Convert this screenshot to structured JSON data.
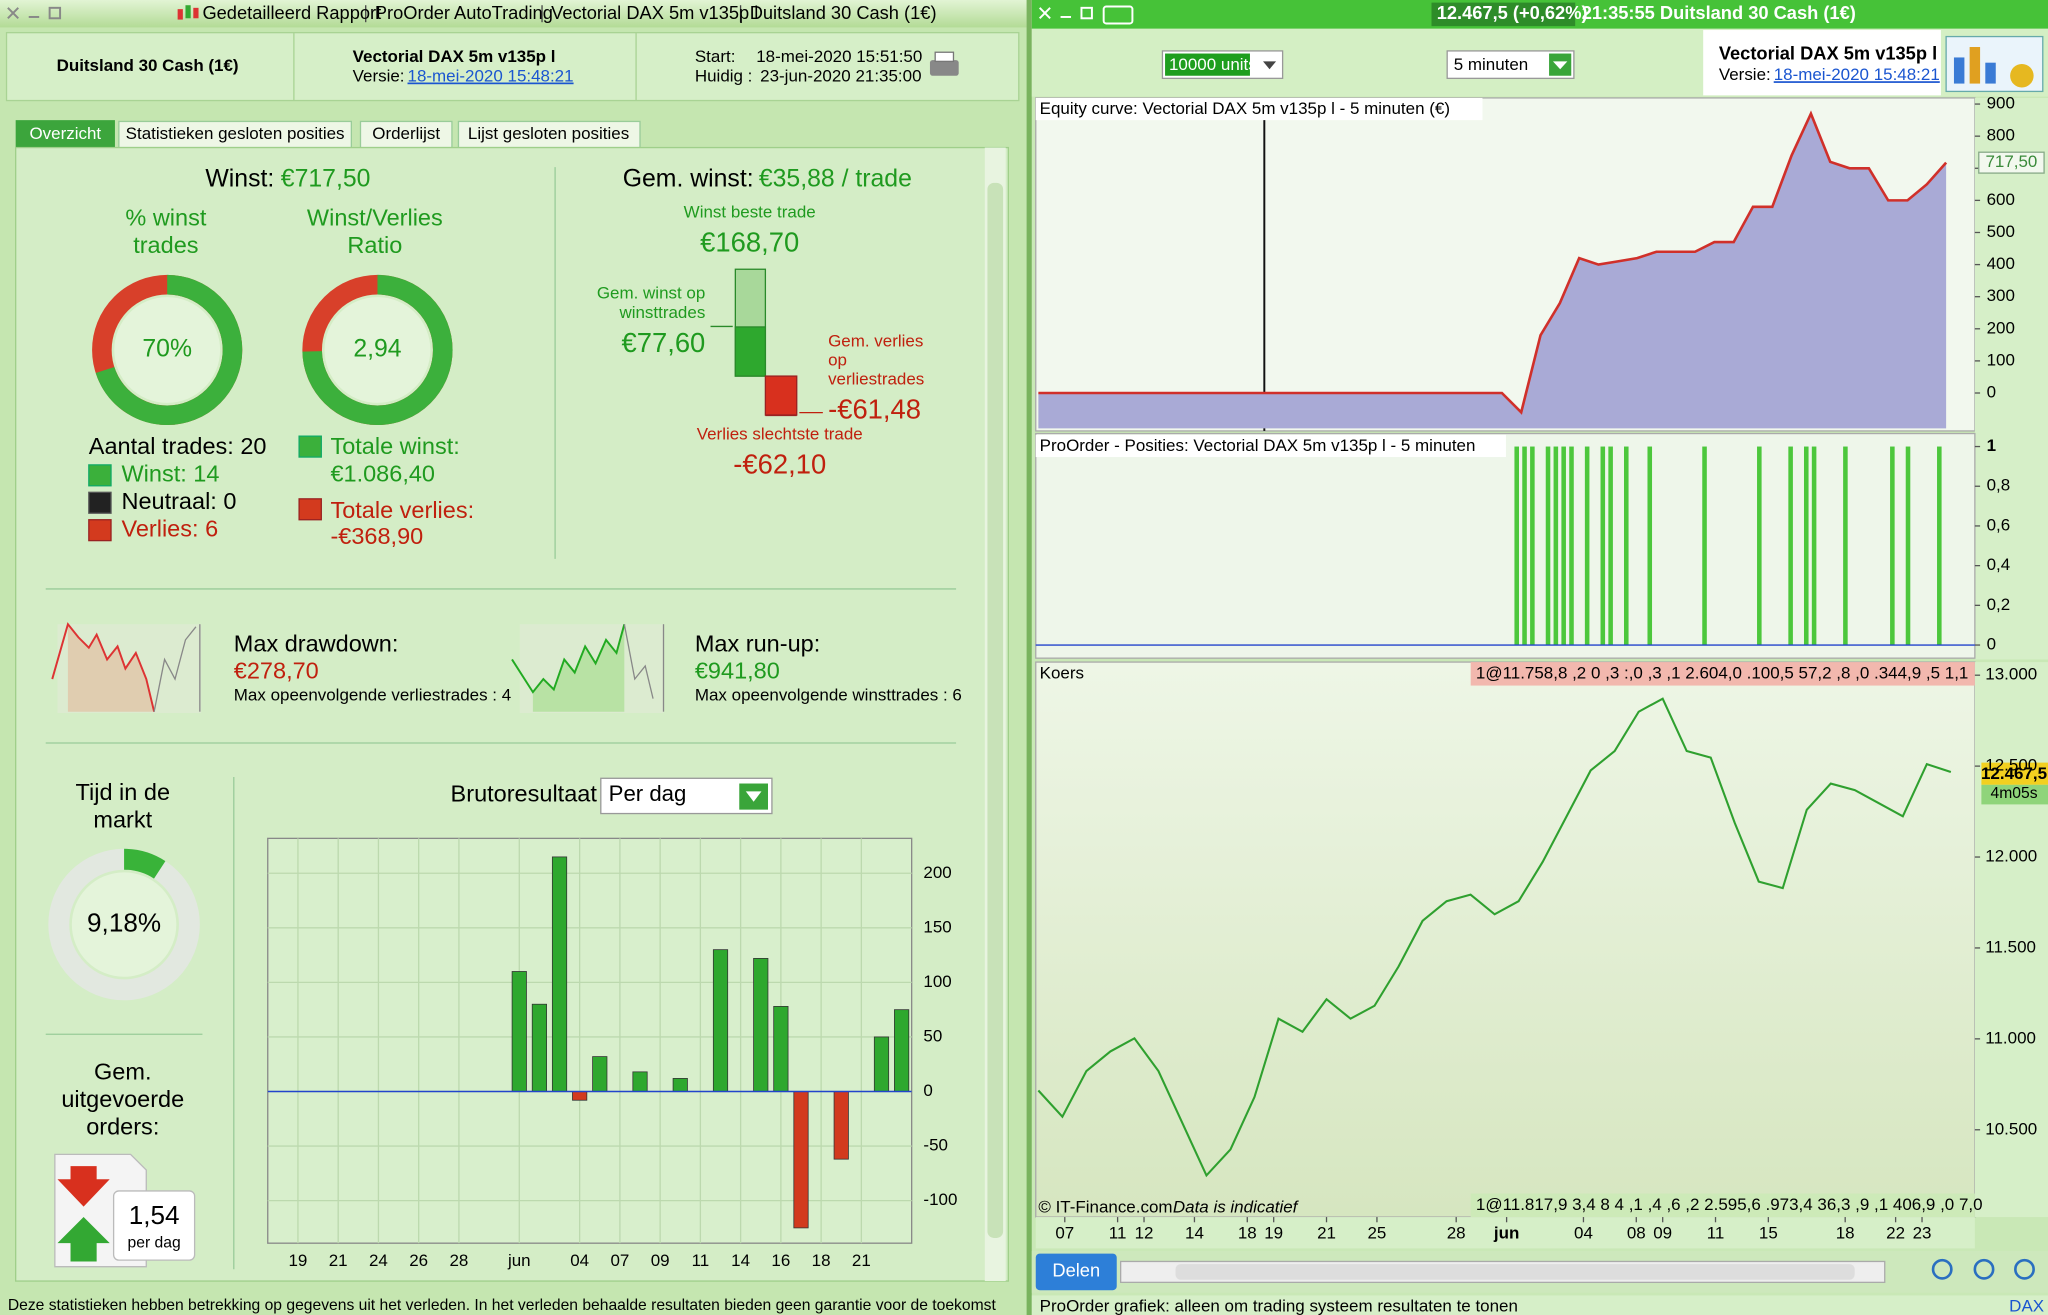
{
  "left": {
    "titlebar": [
      "Gedetailleerd Rapport",
      "ProOrder AutoTrading",
      "Vectorial DAX 5m v135p l",
      "Duitsland 30 Cash (1€)"
    ],
    "header": {
      "instrument": "Duitsland 30 Cash (1€)",
      "system": "Vectorial DAX 5m v135p l",
      "version_label": "Versie:",
      "version": "18-mei-2020 15:48:21",
      "start_label": "Start:",
      "start": "18-mei-2020 15:51:50",
      "now_label": "Huidig :",
      "now": "23-jun-2020 21:35:00"
    },
    "tabs": [
      "Overzicht",
      "Statistieken gesloten posities",
      "Orderlijst",
      "Lijst gesloten posities"
    ],
    "summary": {
      "profit_label": "Winst:",
      "profit": "€717,50",
      "win_pct_label": [
        "% winst",
        "trades"
      ],
      "win_pct": {
        "value": 70,
        "label": "70%"
      },
      "ratio_label": [
        "Winst/Verlies",
        "Ratio"
      ],
      "ratio": {
        "value": 2.94,
        "label": "2,94"
      },
      "trades": "Aantal trades: 20",
      "wins": "Winst: 14",
      "neutral": "Neutraal: 0",
      "losses": "Verlies: 6",
      "total_win_label": "Totale winst:",
      "total_win": "€1.086,40",
      "total_loss_label": "Totale verlies:",
      "total_loss": "-€368,90"
    },
    "avg": {
      "avg_label": "Gem. winst:",
      "avg": "€35,88 / trade",
      "best_label": "Winst beste trade",
      "avg_win_label": [
        "Gem. winst op",
        "winsttrades"
      ],
      "avg_loss_label": [
        "Gem. verlies",
        "op",
        "verliestrades"
      ],
      "worst_label": "Verlies slechtste trade",
      "values": [
        168.7,
        77.6,
        -61.48,
        -62.1
      ],
      "value_labels": [
        "€168,70",
        "€77,60",
        "-€61,48",
        "-€62,10"
      ]
    },
    "drawdown": {
      "label": "Max drawdown:",
      "value": "€278,70",
      "detail": "Max opeenvolgende verliestrades : 4"
    },
    "runup": {
      "label": "Max run-up:",
      "value": "€941,80",
      "detail": "Max opeenvolgende winsttrades : 6"
    },
    "time_in_market": {
      "label": [
        "Tijd in de",
        "markt"
      ],
      "value": 9.18,
      "value_label": "9,18%"
    },
    "orders": {
      "label": [
        "Gem.",
        "uitgevoerde",
        "orders:"
      ],
      "value": 1.54,
      "value_label": "1,54",
      "unit": "per dag"
    },
    "gross_chart": {
      "type": "bar",
      "title": "Brutoresultaat",
      "period": "Per dag",
      "categories": [
        null,
        "19",
        null,
        "21",
        null,
        "24",
        null,
        "26",
        null,
        "28",
        null,
        null,
        "jun",
        null,
        null,
        "04",
        null,
        "07",
        null,
        "09",
        null,
        "11",
        null,
        "14",
        null,
        "16",
        null,
        "18",
        null,
        "21",
        null,
        null
      ],
      "values": [
        null,
        null,
        null,
        null,
        null,
        null,
        null,
        null,
        null,
        null,
        null,
        null,
        110,
        80,
        215,
        -8,
        32,
        null,
        18,
        null,
        12,
        null,
        130,
        null,
        122,
        78,
        -125,
        null,
        -62,
        null,
        50,
        75
      ],
      "color": "#2ea82e",
      "negative_color": "#d23a1e",
      "ylim": [
        -139,
        232
      ],
      "yticks": [
        -100,
        -50,
        0,
        50,
        100,
        150,
        200
      ],
      "grid": true
    },
    "footer": "Deze statistieken hebben betrekking op gegevens uit het verleden. In het verleden behaalde resultaten bieden geen garantie voor de toekomst"
  },
  "right": {
    "titlebar": {
      "price": "12.467,5 (+0,62%)",
      "info": "21:35:55 Duitsland 30 Cash (1€)"
    },
    "toolbar": {
      "units": "10000 units",
      "timeframe": "5 minuten",
      "system": "Vectorial DAX 5m v135p l",
      "version_label": "Versie:",
      "version": "18-mei-2020 15:48:21"
    },
    "equity": {
      "type": "area",
      "title": "Equity curve: Vectorial DAX 5m v135p l - 5 minuten (€)",
      "values": [
        0,
        0,
        0,
        0,
        0,
        0,
        0,
        0,
        0,
        0,
        0,
        0,
        0,
        0,
        0,
        0,
        0,
        0,
        0,
        0,
        0,
        0,
        0,
        0,
        0,
        -60,
        180,
        280,
        420,
        400,
        410,
        420,
        440,
        440,
        440,
        470,
        470,
        580,
        580,
        740,
        870,
        720,
        700,
        700,
        600,
        600,
        650,
        717.5
      ],
      "last_label": "717,50",
      "color": "#d0302a",
      "area_color": "#a9aad6",
      "ylim": [
        -110,
        915
      ],
      "yticks": [
        0,
        100,
        200,
        300,
        400,
        500,
        600,
        700,
        800,
        900
      ]
    },
    "positions": {
      "type": "bar",
      "title": "ProOrder - Posities: Vectorial DAX 5m v135p l - 5 minuten",
      "values": [
        0,
        0,
        0,
        0,
        0,
        0,
        0,
        0,
        0,
        0,
        0,
        0,
        0,
        0,
        0,
        0,
        0,
        0,
        0,
        0,
        0,
        0,
        0,
        0,
        0,
        0,
        0,
        0,
        0,
        0,
        0,
        0,
        0,
        0,
        0,
        0,
        0,
        0,
        0,
        0,
        0,
        0,
        0,
        0,
        0,
        0,
        0,
        0,
        0,
        0,
        0,
        0,
        0,
        0,
        0,
        0,
        0,
        0,
        0,
        0,
        0,
        1,
        1,
        1,
        0,
        1,
        1,
        1,
        1,
        0,
        1,
        0,
        1,
        1,
        0,
        1,
        0,
        0,
        1,
        0,
        0,
        0,
        0,
        0,
        0,
        1,
        0,
        0,
        0,
        0,
        0,
        0,
        1,
        0,
        0,
        0,
        1,
        0,
        1,
        1,
        0,
        0,
        0,
        1,
        0,
        0,
        0,
        0,
        0,
        1,
        0,
        1,
        0,
        0,
        0,
        1,
        0,
        0,
        0,
        0
      ],
      "color": "#4cc73c",
      "ylim": [
        -0.02,
        1.026
      ],
      "yticks": [
        0,
        {
          "value": 0.2,
          "label": "0,2"
        },
        {
          "value": 0.4,
          "label": "0,4"
        },
        {
          "value": 0.6,
          "label": "0,6"
        },
        {
          "value": 0.8,
          "label": "0,8"
        },
        1
      ]
    },
    "price": {
      "type": "line",
      "title": "Koers",
      "x": [
        0,
        1,
        2,
        3,
        4,
        5,
        6,
        7,
        8,
        9,
        10,
        11,
        12,
        13,
        14,
        15,
        16,
        17,
        18,
        19,
        20,
        21,
        22,
        23,
        24,
        25,
        26,
        27,
        28,
        29,
        30,
        31,
        32,
        33,
        34,
        35,
        36,
        37,
        38
      ],
      "values": [
        10716,
        10572,
        10823,
        10931,
        11003,
        10823,
        10536,
        10249,
        10392,
        10680,
        11111,
        11039,
        11218,
        11111,
        11182,
        11398,
        11649,
        11757,
        11793,
        11685,
        11757,
        11973,
        12224,
        12476,
        12583,
        12799,
        12871,
        12583,
        12547,
        12188,
        11865,
        11829,
        12260,
        12404,
        12368,
        12296,
        12224,
        12511,
        12467.5
      ],
      "color": "#2fa02f",
      "xlim": [
        0,
        39
      ],
      "xticks": [
        {
          "value": 1.1,
          "label": "07"
        },
        {
          "value": 3.3,
          "label": "11"
        },
        {
          "value": 4.4,
          "label": "12"
        },
        {
          "value": 6.5,
          "label": "14"
        },
        {
          "value": 8.7,
          "label": "18"
        },
        {
          "value": 9.8,
          "label": "19"
        },
        {
          "value": 12.0,
          "label": "21"
        },
        {
          "value": 14.1,
          "label": "25"
        },
        {
          "value": 17.4,
          "label": "28"
        },
        {
          "value": 19.5,
          "label": "jun"
        },
        {
          "value": 22.7,
          "label": "04"
        },
        {
          "value": 24.9,
          "label": "08"
        },
        {
          "value": 26.0,
          "label": "09"
        },
        {
          "value": 28.2,
          "label": "11"
        },
        {
          "value": 30.4,
          "label": "15"
        },
        {
          "value": 33.6,
          "label": "18"
        },
        {
          "value": 35.7,
          "label": "22"
        },
        {
          "value": 36.8,
          "label": "23"
        }
      ],
      "ylim": [
        10020,
        13065
      ],
      "yticks": [
        {
          "value": 10500,
          "label": "10.500"
        },
        {
          "value": 11000,
          "label": "11.000"
        },
        {
          "value": 11500,
          "label": "11.500"
        },
        {
          "value": 12000,
          "label": "12.000"
        },
        {
          "value": 12500,
          "label": "12.500"
        },
        {
          "value": 13000,
          "label": "13.000"
        }
      ],
      "last_label": "12.467,5",
      "countdown": "4m05s",
      "orders_top": "1@11.758,8 ,2 0 ,3 :,0 ,3 ,1 2.604,0 .100,5 57,2 ,8 ,0 .344,9 ,5 1,1",
      "orders_bottom": "1@11.817,9 3,4 8 4 ,1 ,4 ,6 ,2 2.595,6 .973,4 36,3 ,9 ,1 406,9 ,0 7,0",
      "copyright": "© IT-Finance.com",
      "disclaimer": "Data is indicatief"
    },
    "share": "Delen",
    "footer": "ProOrder grafiek: alleen om trading systeem resultaten te tonen",
    "instrument_tag": "DAX"
  }
}
